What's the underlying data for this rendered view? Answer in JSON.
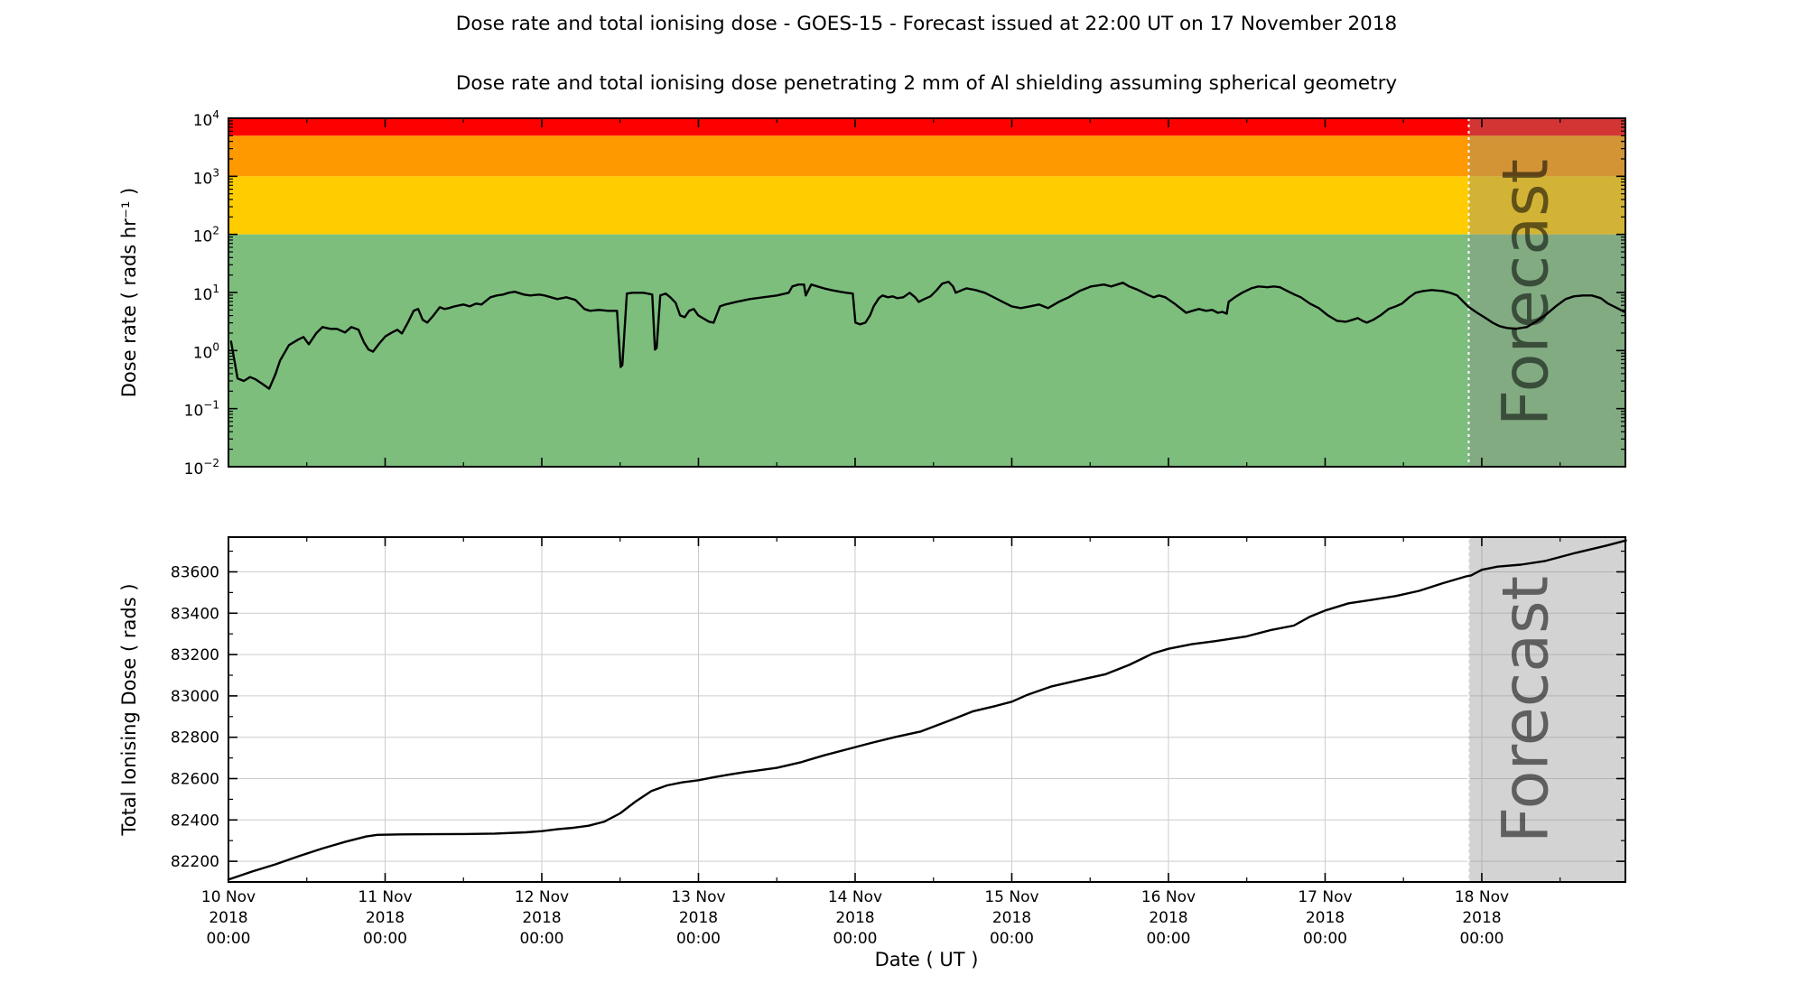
{
  "figure": {
    "title": "Dose rate and total ionising dose - GOES-15 - Forecast issued at 22:00 UT on 17 November 2018",
    "subtitle": "Dose rate and total ionising dose penetrating 2 mm of Al shielding assuming spherical geometry",
    "background": "#ffffff"
  },
  "x_axis": {
    "label": "Date ( UT )",
    "domain_days": [
      0,
      8.9167
    ],
    "major_tick_days": [
      0,
      1,
      2,
      3,
      4,
      5,
      6,
      7,
      8
    ],
    "minor_tick_interval_days": 0.5,
    "tick_labels": [
      [
        "10 Nov",
        "2018",
        "00:00"
      ],
      [
        "11 Nov",
        "2018",
        "00:00"
      ],
      [
        "12 Nov",
        "2018",
        "00:00"
      ],
      [
        "13 Nov",
        "2018",
        "00:00"
      ],
      [
        "14 Nov",
        "2018",
        "00:00"
      ],
      [
        "15 Nov",
        "2018",
        "00:00"
      ],
      [
        "16 Nov",
        "2018",
        "00:00"
      ],
      [
        "17 Nov",
        "2018",
        "00:00"
      ],
      [
        "18 Nov",
        "2018",
        "00:00"
      ]
    ]
  },
  "forecast": {
    "label": "Forecast",
    "start_day": 7.9167,
    "issued_at": "22:00 UT on 17 November 2018",
    "overlay_color": "#8c8c8c",
    "overlay_opacity": 0.38,
    "watermark_color": "#808080",
    "watermark_opacity": 0.55,
    "divider_color": "#ffffff",
    "divider_style": "dotted"
  },
  "chart_data": [
    {
      "type": "line",
      "name": "dose-rate",
      "ylabel": "Dose rate ( rads hr⁻¹ )",
      "yscale": "log",
      "ylim": [
        0.01,
        10000
      ],
      "yticks": [
        {
          "value": 10000,
          "exponent": "4"
        },
        {
          "value": 1000,
          "exponent": "3"
        },
        {
          "value": 100,
          "exponent": "2"
        },
        {
          "value": 10,
          "exponent": "1"
        },
        {
          "value": 1,
          "exponent": "0"
        },
        {
          "value": 0.1,
          "exponent": "−1"
        },
        {
          "value": 0.01,
          "exponent": "−2"
        }
      ],
      "bands": [
        {
          "name": "red-alert",
          "color": "#ff0000",
          "from": 5000,
          "to": 10000
        },
        {
          "name": "orange-warning",
          "color": "#ff9900",
          "from": 1000,
          "to": 5000
        },
        {
          "name": "yellow-caution",
          "color": "#ffcc00",
          "from": 100,
          "to": 1000
        },
        {
          "name": "green-nominal",
          "color": "#7dbe7d",
          "from": 0.01,
          "to": 100
        }
      ],
      "grid": false,
      "line_color": "#000000",
      "points": [
        [
          0.017,
          1.43
        ],
        [
          0.058,
          0.33
        ],
        [
          0.098,
          0.3
        ],
        [
          0.138,
          0.35
        ],
        [
          0.173,
          0.32
        ],
        [
          0.213,
          0.27
        ],
        [
          0.26,
          0.22
        ],
        [
          0.3,
          0.39
        ],
        [
          0.329,
          0.67
        ],
        [
          0.386,
          1.24
        ],
        [
          0.444,
          1.54
        ],
        [
          0.479,
          1.71
        ],
        [
          0.513,
          1.28
        ],
        [
          0.559,
          1.97
        ],
        [
          0.6,
          2.54
        ],
        [
          0.652,
          2.36
        ],
        [
          0.692,
          2.36
        ],
        [
          0.744,
          2.05
        ],
        [
          0.784,
          2.54
        ],
        [
          0.83,
          2.28
        ],
        [
          0.865,
          1.38
        ],
        [
          0.894,
          1.04
        ],
        [
          0.923,
          0.96
        ],
        [
          0.963,
          1.33
        ],
        [
          1.003,
          1.77
        ],
        [
          1.044,
          2.05
        ],
        [
          1.078,
          2.28
        ],
        [
          1.107,
          1.97
        ],
        [
          1.148,
          3.14
        ],
        [
          1.182,
          4.83
        ],
        [
          1.211,
          5.19
        ],
        [
          1.24,
          3.38
        ],
        [
          1.269,
          3.03
        ],
        [
          1.309,
          4.03
        ],
        [
          1.349,
          5.57
        ],
        [
          1.378,
          5.19
        ],
        [
          1.407,
          5.38
        ],
        [
          1.442,
          5.77
        ],
        [
          1.5,
          6.21
        ],
        [
          1.54,
          5.77
        ],
        [
          1.58,
          6.43
        ],
        [
          1.615,
          6.21
        ],
        [
          1.672,
          8.28
        ],
        [
          1.713,
          8.89
        ],
        [
          1.753,
          9.22
        ],
        [
          1.788,
          9.91
        ],
        [
          1.828,
          10.3
        ],
        [
          1.886,
          9.22
        ],
        [
          1.926,
          8.89
        ],
        [
          1.984,
          9.22
        ],
        [
          2.018,
          8.89
        ],
        [
          2.099,
          7.71
        ],
        [
          2.157,
          8.28
        ],
        [
          2.215,
          7.43
        ],
        [
          2.272,
          5.19
        ],
        [
          2.307,
          4.83
        ],
        [
          2.365,
          5.01
        ],
        [
          2.422,
          4.83
        ],
        [
          2.48,
          4.83
        ],
        [
          2.503,
          0.52
        ],
        [
          2.514,
          0.56
        ],
        [
          2.543,
          9.57
        ],
        [
          2.578,
          9.91
        ],
        [
          2.647,
          9.91
        ],
        [
          2.676,
          9.57
        ],
        [
          2.705,
          9.22
        ],
        [
          2.722,
          1.04
        ],
        [
          2.733,
          1.11
        ],
        [
          2.756,
          8.89
        ],
        [
          2.791,
          9.57
        ],
        [
          2.82,
          8.28
        ],
        [
          2.854,
          6.65
        ],
        [
          2.883,
          4.03
        ],
        [
          2.912,
          3.75
        ],
        [
          2.941,
          4.83
        ],
        [
          2.97,
          5.19
        ],
        [
          2.999,
          4.03
        ],
        [
          3.028,
          3.62
        ],
        [
          3.068,
          3.14
        ],
        [
          3.097,
          3.03
        ],
        [
          3.137,
          5.77
        ],
        [
          3.172,
          6.21
        ],
        [
          3.241,
          6.9
        ],
        [
          3.328,
          7.71
        ],
        [
          3.414,
          8.28
        ],
        [
          3.501,
          8.89
        ],
        [
          3.576,
          9.91
        ],
        [
          3.599,
          12.7
        ],
        [
          3.639,
          13.7
        ],
        [
          3.674,
          13.7
        ],
        [
          3.685,
          8.89
        ],
        [
          3.72,
          13.7
        ],
        [
          3.76,
          12.7
        ],
        [
          3.8,
          11.8
        ],
        [
          3.847,
          11.0
        ],
        [
          3.904,
          10.3
        ],
        [
          3.945,
          9.91
        ],
        [
          3.985,
          9.57
        ],
        [
          4.002,
          3.03
        ],
        [
          4.031,
          2.83
        ],
        [
          4.066,
          3.03
        ],
        [
          4.095,
          4.03
        ],
        [
          4.118,
          5.77
        ],
        [
          4.152,
          7.99
        ],
        [
          4.175,
          8.89
        ],
        [
          4.21,
          8.28
        ],
        [
          4.239,
          8.58
        ],
        [
          4.268,
          7.99
        ],
        [
          4.308,
          8.28
        ],
        [
          4.348,
          9.91
        ],
        [
          4.383,
          8.28
        ],
        [
          4.406,
          6.9
        ],
        [
          4.441,
          7.71
        ],
        [
          4.481,
          8.58
        ],
        [
          4.521,
          11.0
        ],
        [
          4.556,
          14.2
        ],
        [
          4.596,
          15.3
        ],
        [
          4.625,
          12.7
        ],
        [
          4.642,
          9.91
        ],
        [
          4.683,
          11.0
        ],
        [
          4.712,
          11.8
        ],
        [
          4.769,
          11.0
        ],
        [
          4.827,
          9.91
        ],
        [
          4.885,
          8.28
        ],
        [
          4.942,
          6.9
        ],
        [
          5.0,
          5.77
        ],
        [
          5.058,
          5.38
        ],
        [
          5.115,
          5.77
        ],
        [
          5.173,
          6.21
        ],
        [
          5.231,
          5.38
        ],
        [
          5.3,
          6.9
        ],
        [
          5.363,
          8.28
        ],
        [
          5.432,
          10.6
        ],
        [
          5.507,
          12.7
        ],
        [
          5.588,
          13.7
        ],
        [
          5.634,
          12.7
        ],
        [
          5.709,
          14.7
        ],
        [
          5.749,
          12.7
        ],
        [
          5.807,
          11.0
        ],
        [
          5.865,
          9.22
        ],
        [
          5.905,
          8.28
        ],
        [
          5.94,
          8.89
        ],
        [
          5.98,
          8.28
        ],
        [
          6.038,
          6.43
        ],
        [
          6.113,
          4.47
        ],
        [
          6.153,
          4.83
        ],
        [
          6.194,
          5.19
        ],
        [
          6.24,
          4.83
        ],
        [
          6.28,
          5.01
        ],
        [
          6.315,
          4.47
        ],
        [
          6.344,
          4.64
        ],
        [
          6.372,
          4.31
        ],
        [
          6.384,
          6.9
        ],
        [
          6.424,
          8.28
        ],
        [
          6.47,
          9.91
        ],
        [
          6.528,
          11.8
        ],
        [
          6.574,
          12.7
        ],
        [
          6.632,
          12.3
        ],
        [
          6.672,
          12.7
        ],
        [
          6.712,
          12.3
        ],
        [
          6.759,
          10.6
        ],
        [
          6.805,
          9.22
        ],
        [
          6.845,
          8.28
        ],
        [
          6.903,
          6.43
        ],
        [
          6.96,
          5.38
        ],
        [
          7.018,
          4.03
        ],
        [
          7.076,
          3.25
        ],
        [
          7.134,
          3.14
        ],
        [
          7.174,
          3.38
        ],
        [
          7.209,
          3.62
        ],
        [
          7.238,
          3.25
        ],
        [
          7.266,
          3.03
        ],
        [
          7.307,
          3.38
        ],
        [
          7.353,
          4.03
        ],
        [
          7.405,
          5.19
        ],
        [
          7.451,
          5.77
        ],
        [
          7.491,
          6.43
        ],
        [
          7.537,
          8.28
        ],
        [
          7.578,
          9.91
        ],
        [
          7.624,
          10.6
        ],
        [
          7.681,
          11.0
        ],
        [
          7.751,
          10.6
        ],
        [
          7.797,
          9.91
        ],
        [
          7.843,
          8.89
        ],
        [
          7.883,
          6.9
        ],
        [
          7.918,
          5.57
        ],
        [
          7.97,
          4.47
        ],
        [
          8.016,
          3.75
        ],
        [
          8.068,
          3.03
        ],
        [
          8.114,
          2.63
        ],
        [
          8.16,
          2.45
        ],
        [
          8.218,
          2.37
        ],
        [
          8.287,
          2.54
        ],
        [
          8.345,
          3.14
        ],
        [
          8.403,
          4.03
        ],
        [
          8.472,
          5.77
        ],
        [
          8.535,
          7.71
        ],
        [
          8.587,
          8.58
        ],
        [
          8.645,
          8.89
        ],
        [
          8.702,
          8.89
        ],
        [
          8.76,
          7.99
        ],
        [
          8.806,
          6.43
        ],
        [
          8.864,
          5.38
        ],
        [
          8.91,
          4.64
        ]
      ]
    },
    {
      "type": "line",
      "name": "total-ionising-dose",
      "ylabel": "Total Ionising Dose ( rads )",
      "yscale": "linear",
      "ylim": [
        82100,
        83768
      ],
      "yticks": [
        82200,
        82400,
        82600,
        82800,
        83000,
        83200,
        83400,
        83600
      ],
      "ytick_minor_step": 100,
      "grid": true,
      "grid_color": "#cccccc",
      "line_color": "#000000",
      "points": [
        [
          0.0,
          82112
        ],
        [
          0.15,
          82150
        ],
        [
          0.3,
          82185
        ],
        [
          0.45,
          82225
        ],
        [
          0.6,
          82262
        ],
        [
          0.75,
          82295
        ],
        [
          0.88,
          82320
        ],
        [
          0.95,
          82328
        ],
        [
          1.1,
          82330
        ],
        [
          1.3,
          82331
        ],
        [
          1.5,
          82332
        ],
        [
          1.7,
          82334
        ],
        [
          1.9,
          82340
        ],
        [
          2.0,
          82346
        ],
        [
          2.1,
          82355
        ],
        [
          2.2,
          82362
        ],
        [
          2.3,
          82372
        ],
        [
          2.4,
          82392
        ],
        [
          2.5,
          82432
        ],
        [
          2.6,
          82490
        ],
        [
          2.7,
          82540
        ],
        [
          2.8,
          82567
        ],
        [
          2.9,
          82582
        ],
        [
          3.0,
          82592
        ],
        [
          3.1,
          82607
        ],
        [
          3.2,
          82620
        ],
        [
          3.3,
          82632
        ],
        [
          3.35,
          82636
        ],
        [
          3.5,
          82652
        ],
        [
          3.65,
          82678
        ],
        [
          3.8,
          82712
        ],
        [
          3.95,
          82742
        ],
        [
          4.1,
          82772
        ],
        [
          4.25,
          82800
        ],
        [
          4.42,
          82828
        ],
        [
          4.6,
          82880
        ],
        [
          4.75,
          82925
        ],
        [
          4.9,
          82952
        ],
        [
          5.0,
          82972
        ],
        [
          5.1,
          83005
        ],
        [
          5.25,
          83045
        ],
        [
          5.45,
          83080
        ],
        [
          5.6,
          83105
        ],
        [
          5.75,
          83150
        ],
        [
          5.9,
          83205
        ],
        [
          6.0,
          83228
        ],
        [
          6.15,
          83250
        ],
        [
          6.3,
          83265
        ],
        [
          6.5,
          83288
        ],
        [
          6.65,
          83318
        ],
        [
          6.8,
          83340
        ],
        [
          6.9,
          83382
        ],
        [
          7.0,
          83413
        ],
        [
          7.15,
          83448
        ],
        [
          7.3,
          83465
        ],
        [
          7.45,
          83483
        ],
        [
          7.6,
          83508
        ],
        [
          7.75,
          83545
        ],
        [
          7.9,
          83578
        ],
        [
          7.93,
          83582
        ],
        [
          8.0,
          83610
        ],
        [
          8.1,
          83625
        ],
        [
          8.25,
          83635
        ],
        [
          8.4,
          83652
        ],
        [
          8.6,
          83692
        ],
        [
          8.8,
          83728
        ],
        [
          8.92,
          83752
        ]
      ]
    }
  ]
}
